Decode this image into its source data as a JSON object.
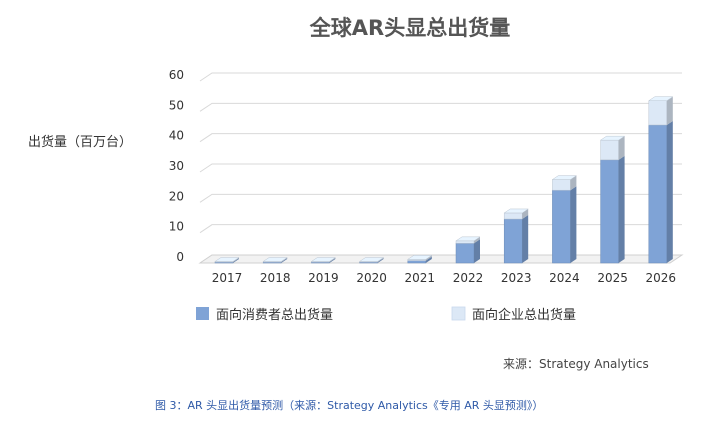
{
  "chart_data": {
    "type": "bar",
    "stacked": true,
    "style": "3d",
    "title": "全球AR头显总出货量",
    "ylabel": "出货量（百万台）",
    "xlabel": "",
    "categories": [
      "2017",
      "2018",
      "2019",
      "2020",
      "2021",
      "2022",
      "2023",
      "2024",
      "2025",
      "2026"
    ],
    "series": [
      {
        "name": "面向消费者总出货量",
        "color": "#7fa3d6",
        "values": [
          0.3,
          0.3,
          0.3,
          0.3,
          0.8,
          6.5,
          14.5,
          24,
          34,
          45.5
        ]
      },
      {
        "name": "面向企业总出货量",
        "color": "#dce8f6",
        "values": [
          0.2,
          0.2,
          0.2,
          0.2,
          0.4,
          0.8,
          2,
          3.5,
          6.5,
          8
        ]
      }
    ],
    "ylim": [
      0,
      60
    ],
    "yticks": [
      0,
      10,
      20,
      30,
      40,
      50,
      60
    ],
    "grid": true,
    "legend_position": "bottom",
    "source": "来源：Strategy Analytics",
    "caption": "图 3：AR 头显出货量预测（来源：Strategy Analytics《专用 AR 头显预测》）"
  }
}
